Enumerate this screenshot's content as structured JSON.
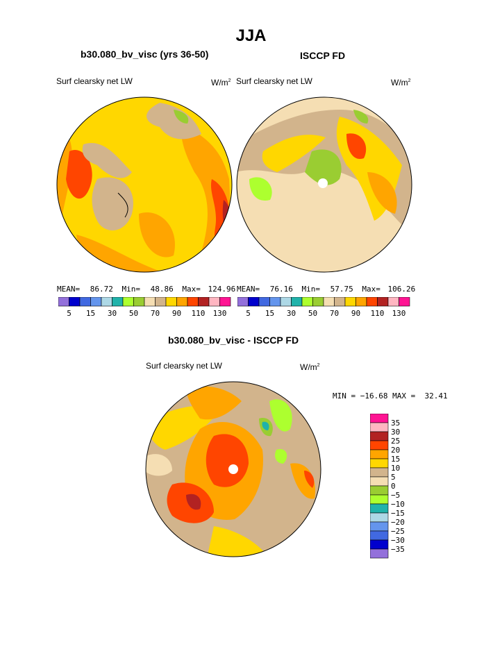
{
  "page": {
    "title": "JJA"
  },
  "panels": [
    {
      "title": "b30.080_bv_visc (yrs 36-50)",
      "left_label": "Surf clearsky net LW",
      "right_label": "W/m",
      "right_sup": "2",
      "stats": {
        "mean_label": "MEAN=",
        "mean": "86.72",
        "min_label": "Min=",
        "min": "48.86",
        "max_label": "Max=",
        "max": "124.96"
      }
    },
    {
      "title": "ISCCP FD",
      "left_label": "Surf clearsky net LW",
      "right_label": "W/m",
      "right_sup": "2",
      "stats": {
        "mean_label": "MEAN=",
        "mean": "76.16",
        "min_label": "Min=",
        "min": "57.75",
        "max_label": "Max=",
        "max": "106.26"
      }
    }
  ],
  "top_colorbar": {
    "colors": [
      "#9370DB",
      "#0000CD",
      "#4169E1",
      "#6495ED",
      "#ADD8E6",
      "#20B2AA",
      "#ADFF2F",
      "#9ACD32",
      "#F5DEB3",
      "#D2B48C",
      "#FFD700",
      "#FFA500",
      "#FF4500",
      "#B22222",
      "#FFB6C1",
      "#FF1493"
    ],
    "labels": [
      "5",
      "15",
      "30",
      "50",
      "70",
      "90",
      "110",
      "130"
    ]
  },
  "diff_panel": {
    "title": "b30.080_bv_visc - ISCCP FD",
    "left_label": "Surf clearsky net LW",
    "right_label": "W/m",
    "right_sup": "2",
    "minmax": "MIN = −16.68 MAX =  32.41"
  },
  "diff_colorbar": {
    "colors": [
      "#FF1493",
      "#FFB6C1",
      "#B22222",
      "#FF4500",
      "#FFA500",
      "#FFD700",
      "#D2B48C",
      "#F5DEB3",
      "#9ACD32",
      "#ADFF2F",
      "#20B2AA",
      "#ADD8E6",
      "#6495ED",
      "#4169E1",
      "#0000CD",
      "#9370DB"
    ],
    "labels": [
      "35",
      "30",
      "25",
      "20",
      "15",
      "10",
      "5",
      "0",
      "−5",
      "−10",
      "−15",
      "−20",
      "−25",
      "−30",
      "−35"
    ]
  }
}
